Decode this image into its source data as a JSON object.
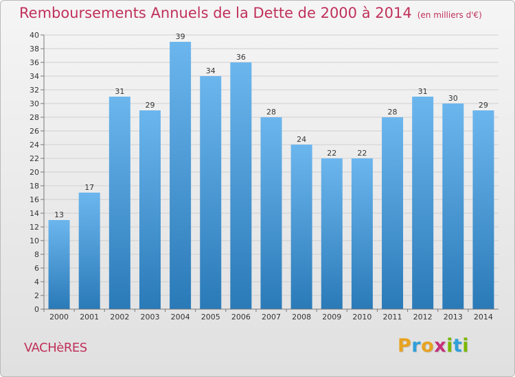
{
  "header": {
    "title": "Remboursements Annuels de la Dette de 2000 à 2014",
    "subtitle": "(en milliers d'€)"
  },
  "footer": {
    "commune": "VACHèRES",
    "logo_letters": [
      {
        "char": "P",
        "color": "#e8a321"
      },
      {
        "char": "r",
        "color": "#2f9fd8"
      },
      {
        "char": "o",
        "color": "#e8a321"
      },
      {
        "char": "x",
        "color": "#c6307a"
      },
      {
        "char": "i",
        "color": "#7ab800"
      },
      {
        "char": "t",
        "color": "#2f9fd8"
      },
      {
        "char": "i",
        "color": "#7ab800"
      }
    ]
  },
  "chart_data": {
    "type": "bar",
    "categories": [
      "2000",
      "2001",
      "2002",
      "2003",
      "2004",
      "2005",
      "2006",
      "2007",
      "2008",
      "2009",
      "2010",
      "2011",
      "2012",
      "2013",
      "2014"
    ],
    "values": [
      13,
      17,
      31,
      29,
      39,
      34,
      36,
      28,
      24,
      22,
      22,
      28,
      31,
      30,
      29
    ],
    "ylim": [
      0,
      40
    ],
    "yticks": [
      0,
      2,
      4,
      6,
      8,
      10,
      12,
      14,
      16,
      18,
      20,
      22,
      24,
      26,
      28,
      30,
      32,
      34,
      36,
      38,
      40
    ],
    "grid": true,
    "data_labels": true,
    "colors": {
      "bar_top": "#6cb6ee",
      "bar_bottom": "#2a7ab8",
      "grid": "#cfcfcf",
      "axis": "#777777",
      "text": "#333333",
      "title": "#c0305a"
    }
  }
}
